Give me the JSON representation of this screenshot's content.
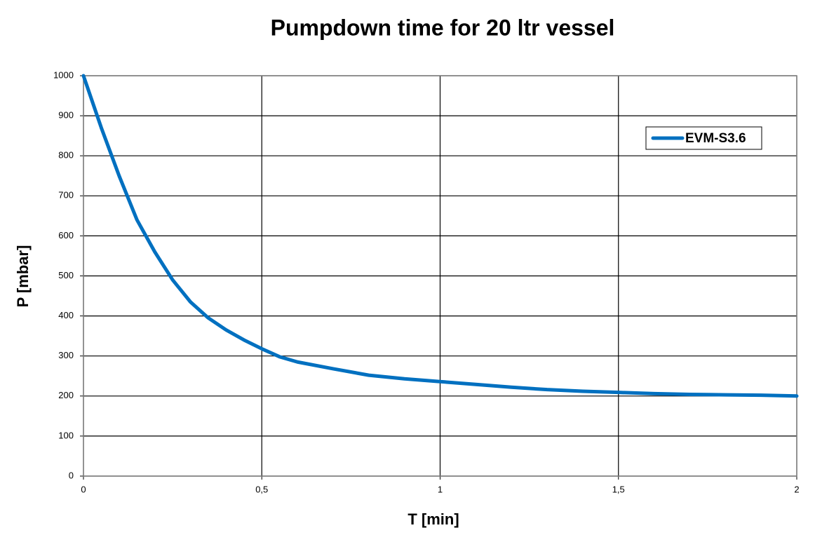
{
  "chart_data": {
    "type": "line",
    "title": "Pumpdown time for 20 ltr vessel",
    "x_label": "T [min]",
    "y_label": "P [mbar]",
    "x": [
      0,
      0.05,
      0.1,
      0.15,
      0.2,
      0.25,
      0.3,
      0.35,
      0.4,
      0.45,
      0.5,
      0.55,
      0.6,
      0.7,
      0.8,
      0.9,
      1.0,
      1.1,
      1.2,
      1.3,
      1.4,
      1.5,
      1.6,
      1.7,
      1.8,
      1.9,
      2.0
    ],
    "series": [
      {
        "name": "EVM-S3.6",
        "color": "#0070c0",
        "values": [
          1000,
          870,
          750,
          640,
          560,
          490,
          435,
          395,
          365,
          340,
          318,
          298,
          285,
          268,
          252,
          243,
          236,
          229,
          222,
          216,
          212,
          209,
          206,
          204,
          203,
          202,
          200
        ]
      }
    ],
    "xlim": [
      0,
      2
    ],
    "xticks": [
      0,
      {
        "value": 0.5,
        "label": "0,5"
      },
      1,
      {
        "value": 1.5,
        "label": "1,5"
      },
      2
    ],
    "ylim": [
      0,
      1000
    ],
    "yticks": [
      0,
      100,
      200,
      300,
      400,
      500,
      600,
      700,
      800,
      900,
      1000
    ],
    "grid": true,
    "legend": "upper right"
  }
}
